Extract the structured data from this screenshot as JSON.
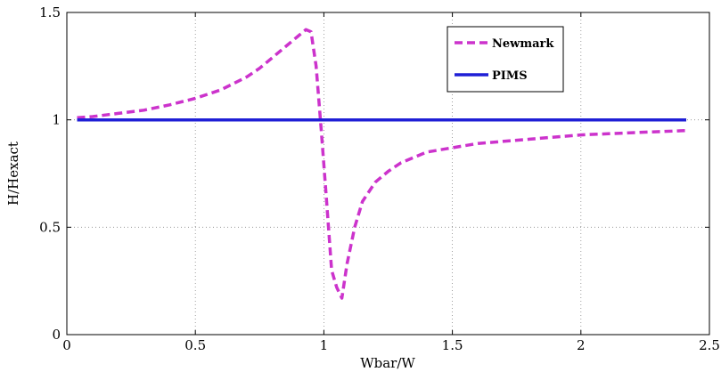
{
  "chart_data": {
    "type": "line",
    "title": "",
    "xlabel": "Wbar/W",
    "ylabel": "H/Hexact",
    "xlim": [
      0,
      2.5
    ],
    "ylim": [
      0,
      1.5
    ],
    "xticks": [
      0,
      0.5,
      1,
      1.5,
      2,
      2.5
    ],
    "yticks": [
      0,
      0.5,
      1,
      1.5
    ],
    "xtick_labels": [
      "0",
      "0.5",
      "1",
      "1.5",
      "2",
      "2.5"
    ],
    "ytick_labels": [
      "0",
      "0.5",
      "1",
      "1.5"
    ],
    "grid": true,
    "legend_position": "top-right",
    "series": [
      {
        "name": "Newmark",
        "color": "#cc33cc",
        "style": "dashed",
        "x": [
          0.04,
          0.1,
          0.2,
          0.3,
          0.4,
          0.5,
          0.6,
          0.7,
          0.75,
          0.8,
          0.85,
          0.9,
          0.93,
          0.95,
          0.97,
          0.99,
          1.01,
          1.03,
          1.05,
          1.07,
          1.09,
          1.12,
          1.15,
          1.2,
          1.25,
          1.3,
          1.4,
          1.5,
          1.6,
          1.8,
          2.0,
          2.2,
          2.41
        ],
        "y": [
          1.01,
          1.015,
          1.03,
          1.045,
          1.07,
          1.1,
          1.14,
          1.2,
          1.24,
          1.29,
          1.34,
          1.39,
          1.42,
          1.41,
          1.25,
          0.95,
          0.63,
          0.3,
          0.22,
          0.17,
          0.33,
          0.5,
          0.62,
          0.71,
          0.76,
          0.8,
          0.85,
          0.87,
          0.89,
          0.91,
          0.93,
          0.94,
          0.95
        ]
      },
      {
        "name": "PIMS",
        "color": "#1f1fd6",
        "style": "solid",
        "x": [
          0.04,
          2.41
        ],
        "y": [
          1.0,
          1.0
        ]
      }
    ]
  }
}
